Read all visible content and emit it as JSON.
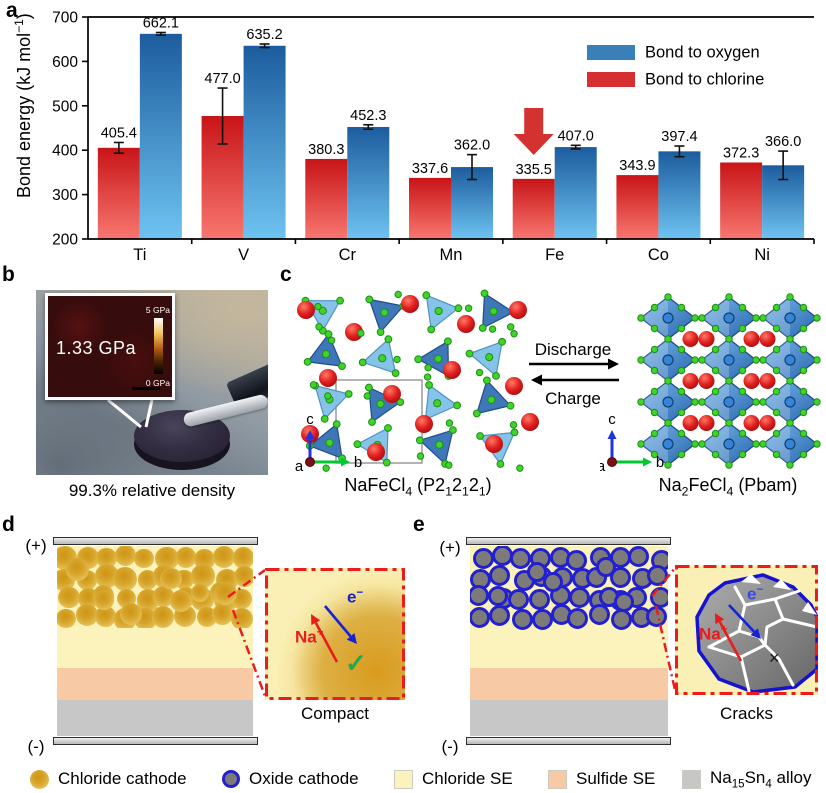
{
  "colors": {
    "oxygen_bar_top": "#1c5c9e",
    "oxygen_bar_bottom": "#6ec3f1",
    "chlorine_bar_top": "#c81417",
    "chlorine_bar_bottom": "#f87770",
    "legend_oxygen": "#3a80b8",
    "legend_chlorine": "#d62f2f",
    "arrow_red": "#d33230",
    "chloride_cathode_gold": "#d6a52b",
    "oxide_cathode_fill": "#7d7b79",
    "oxide_cathode_ring": "#2320cf",
    "chloride_se": "#fbf3bb",
    "sulfide_se": "#f7c9a4",
    "alloy_gray": "#c7c7c7",
    "inset_border_red": "#ea1c1c",
    "na_red": "#e81c1c",
    "e_blue": "#1522d8",
    "check_green": "#1faa50"
  },
  "chart_data": {
    "type": "bar",
    "title": "",
    "categories": [
      "Ti",
      "V",
      "Cr",
      "Mn",
      "Fe",
      "Co",
      "Ni"
    ],
    "series": [
      {
        "name": "Bond to oxygen",
        "values": [
          662.1,
          635.2,
          452.3,
          362.0,
          407.0,
          397.4,
          366.0
        ],
        "errors": [
          3,
          4,
          5,
          28,
          4,
          12,
          32
        ]
      },
      {
        "name": "Bond to chlorine",
        "values": [
          405.4,
          477.0,
          380.3,
          337.6,
          335.5,
          343.9,
          372.3
        ],
        "errors": [
          12,
          63,
          0,
          0,
          0,
          0,
          0
        ]
      }
    ],
    "ylabel_rich": [
      {
        "t": "Bond energy (kJ mol"
      },
      {
        "t": "−1",
        "s": "sup"
      },
      {
        "t": ")"
      }
    ],
    "ylim": [
      200,
      700
    ],
    "yticks": [
      200,
      300,
      400,
      500,
      600,
      700
    ],
    "legend_position": "top-right",
    "grid": false,
    "annotation": {
      "type": "down-arrow",
      "category": "Fe",
      "series": "Bond to chlorine"
    }
  },
  "panels": {
    "a": {
      "letter": "a"
    },
    "b": {
      "letter": "b",
      "inset_value": "1.33 GPa",
      "scale_top": "5 GPa",
      "scale_bottom": "0 GPa",
      "caption": "99.3% relative density"
    },
    "c": {
      "letter": "c",
      "discharge": "Discharge",
      "charge": "Charge",
      "left_formula": [
        {
          "t": "NaFeCl"
        },
        {
          "t": "4",
          "s": "sub"
        },
        {
          "t": " (P2"
        },
        {
          "t": "1",
          "s": "sub"
        },
        {
          "t": "2"
        },
        {
          "t": "1",
          "s": "sub"
        },
        {
          "t": "2"
        },
        {
          "t": "1",
          "s": "sub"
        },
        {
          "t": ")"
        }
      ],
      "right_formula": [
        {
          "t": "Na"
        },
        {
          "t": "2",
          "s": "sub"
        },
        {
          "t": "FeCl"
        },
        {
          "t": "4",
          "s": "sub"
        },
        {
          "t": " (Pbam)"
        }
      ],
      "axis_a": "a",
      "axis_b": "b",
      "axis_c": "c"
    },
    "d": {
      "letter": "d",
      "plus": "(+)",
      "minus": "(-)",
      "na_ion": [
        {
          "t": "Na"
        },
        {
          "t": "+",
          "s": "sup"
        }
      ],
      "electron": [
        {
          "t": "e"
        },
        {
          "t": "−",
          "s": "sup"
        }
      ],
      "check": "✓",
      "caption": "Compact"
    },
    "e": {
      "letter": "e",
      "plus": "(+)",
      "minus": "(-)",
      "na_ion": [
        {
          "t": "Na"
        },
        {
          "t": "+",
          "s": "sup"
        }
      ],
      "electron": [
        {
          "t": "e"
        },
        {
          "t": "−",
          "s": "sup"
        }
      ],
      "cross": "×",
      "caption": "Cracks"
    }
  },
  "legend": {
    "items": [
      {
        "label": [
          {
            "t": "Chloride cathode"
          }
        ]
      },
      {
        "label": [
          {
            "t": "Oxide cathode"
          }
        ]
      },
      {
        "label": [
          {
            "t": "Chloride SE"
          }
        ]
      },
      {
        "label": [
          {
            "t": "Sulfide SE"
          }
        ]
      },
      {
        "label": [
          {
            "t": "Na"
          },
          {
            "t": "15",
            "s": "sub"
          },
          {
            "t": "Sn"
          },
          {
            "t": "4",
            "s": "sub"
          },
          {
            "t": " alloy"
          }
        ]
      }
    ]
  }
}
